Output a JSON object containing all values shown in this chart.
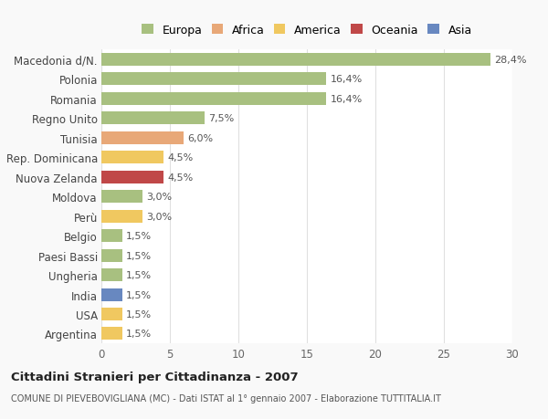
{
  "categories": [
    "Macedonia d/N.",
    "Polonia",
    "Romania",
    "Regno Unito",
    "Tunisia",
    "Rep. Dominicana",
    "Nuova Zelanda",
    "Moldova",
    "Perù",
    "Belgio",
    "Paesi Bassi",
    "Ungheria",
    "India",
    "USA",
    "Argentina"
  ],
  "values": [
    28.4,
    16.4,
    16.4,
    7.5,
    6.0,
    4.5,
    4.5,
    3.0,
    3.0,
    1.5,
    1.5,
    1.5,
    1.5,
    1.5,
    1.5
  ],
  "labels": [
    "28,4%",
    "16,4%",
    "16,4%",
    "7,5%",
    "6,0%",
    "4,5%",
    "4,5%",
    "3,0%",
    "3,0%",
    "1,5%",
    "1,5%",
    "1,5%",
    "1,5%",
    "1,5%",
    "1,5%"
  ],
  "colors": [
    "#a8c080",
    "#a8c080",
    "#a8c080",
    "#a8c080",
    "#e8a878",
    "#f0c860",
    "#c04848",
    "#a8c080",
    "#f0c860",
    "#a8c080",
    "#a8c080",
    "#a8c080",
    "#6888c0",
    "#f0c860",
    "#f0c860"
  ],
  "legend_labels": [
    "Europa",
    "Africa",
    "America",
    "Oceania",
    "Asia"
  ],
  "legend_colors": [
    "#a8c080",
    "#e8a878",
    "#f0c860",
    "#c04848",
    "#6888c0"
  ],
  "xlim": [
    0,
    30
  ],
  "xticks": [
    0,
    5,
    10,
    15,
    20,
    25,
    30
  ],
  "title": "Cittadini Stranieri per Cittadinanza - 2007",
  "subtitle": "COMUNE DI PIEVEBOVIGLIANA (MC) - Dati ISTAT al 1° gennaio 2007 - Elaborazione TUTTITALIA.IT",
  "background_color": "#f9f9f9",
  "bar_background": "#ffffff",
  "grid_color": "#e0e0e0"
}
